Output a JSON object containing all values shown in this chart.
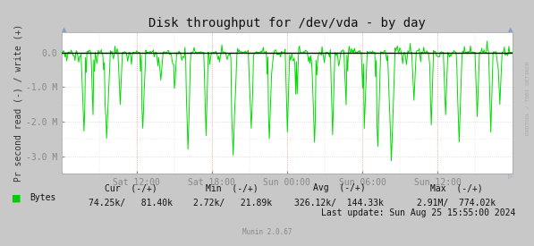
{
  "title": "Disk throughput for /dev/vda - by day",
  "ylabel": "Pr second read (-) / write (+)",
  "x_tick_labels": [
    "Sat 12:00",
    "Sat 18:00",
    "Sun 00:00",
    "Sun 06:00",
    "Sun 12:00"
  ],
  "ylim": [
    -3500000,
    600000
  ],
  "yticks": [
    0,
    -1000000,
    -2000000,
    -3000000
  ],
  "ytick_labels": [
    "0.0",
    "-1.0 M",
    "-2.0 M",
    "-3.0 M"
  ],
  "line_color": "#00dd00",
  "zero_line_color": "#000000",
  "bg_color": "#ffffff",
  "outer_bg_color": "#c8c8c8",
  "grid_color": "#e0e0e0",
  "legend_label": "Bytes",
  "legend_color": "#00cc00",
  "footer_cur_label": "Cur  (-/+)",
  "footer_min_label": "Min  (-/+)",
  "footer_avg_label": "Avg  (-/+)",
  "footer_max_label": "Max  (-/+)",
  "footer_cur_vals": "74.25k/   81.40k",
  "footer_min_vals": "2.72k/   21.89k",
  "footer_avg_vals": "326.12k/  144.33k",
  "footer_max_vals": "2.91M/  774.02k",
  "last_update": "Last update: Sun Aug 25 15:55:00 2024",
  "munin_version": "Munin 2.0.67",
  "rrdtool_label": "RRDTOOL / TOBI OETIKER",
  "title_fontsize": 10,
  "axis_fontsize": 7,
  "footer_fontsize": 7,
  "num_points": 600,
  "seed": 42
}
